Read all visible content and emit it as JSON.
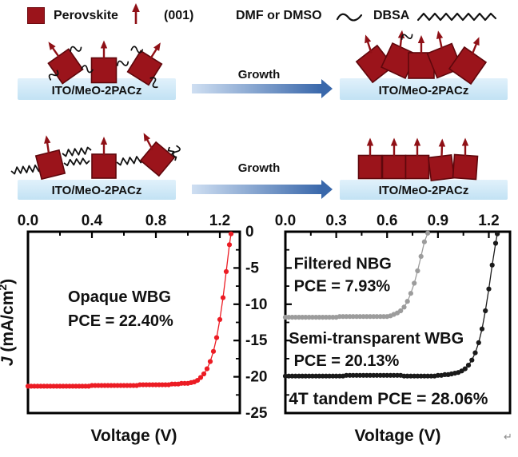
{
  "legend": {
    "perovskite_label": "Perovskite",
    "orientation_label": "(001)",
    "solvent_label": "DMF or DMSO",
    "surfactant_label": "DBSA"
  },
  "schematic": {
    "substrate_label": "ITO/MeO-2PACz",
    "growth_label": "Growth"
  },
  "footer": {
    "return_mark": "↵"
  },
  "colors": {
    "perovskite": "#9b141b",
    "orientation_arrow": "#8f1016",
    "substrate_blue": "#cde7f7",
    "growth_gradient_start": "#cfdff2",
    "growth_gradient_end": "#3a68ab",
    "red_series": "#ec1c24",
    "gray_series": "#9c9c9c",
    "black_series": "#1a1a1a"
  },
  "chart_data": [
    {
      "type": "line",
      "title": "",
      "xlabel": "Voltage (V)",
      "ylabel": "J (mA/cm2)",
      "ylabel_rich": [
        {
          "t": "J",
          "italic": true
        },
        {
          "t": " (mA/cm"
        },
        {
          "t": "2",
          "sup": true
        },
        {
          "t": ")",
          "unsup": true
        }
      ],
      "xlim": [
        0,
        1.325
      ],
      "ylim": [
        -25,
        0
      ],
      "x_ticks": [
        0,
        0.4,
        0.8,
        1.2
      ],
      "x_tick_labels": [
        "0.0",
        "0.4",
        "0.8",
        "1.2"
      ],
      "x_minor_step": 0.2,
      "y_ticks": [
        0,
        -5,
        -10,
        -15,
        -20,
        -25
      ],
      "y_tick_labels": [
        "0",
        "-5",
        "-10",
        "-15",
        "-20",
        "-25"
      ],
      "y_tick_side": "right",
      "y_minor_step": 2.5,
      "grid": false,
      "annotations": [
        {
          "text": "Opaque WBG",
          "x": 0.25,
          "y": -9.7,
          "color": "#ec1c24",
          "size": 20
        },
        {
          "text": "PCE = 22.40%",
          "x": 0.25,
          "y": -13.0,
          "color": "#ec1c24",
          "size": 20
        }
      ],
      "series": [
        {
          "name": "Opaque WBG",
          "color": "#ec1c24",
          "x": [
            0,
            0.02,
            0.04,
            0.06,
            0.08,
            0.1,
            0.12,
            0.14,
            0.16,
            0.18,
            0.2,
            0.22,
            0.24,
            0.26,
            0.28,
            0.3,
            0.32,
            0.34,
            0.36,
            0.38,
            0.4,
            0.42,
            0.44,
            0.46,
            0.48,
            0.5,
            0.52,
            0.54,
            0.56,
            0.58,
            0.6,
            0.62,
            0.64,
            0.66,
            0.68,
            0.7,
            0.72,
            0.74,
            0.76,
            0.78,
            0.8,
            0.82,
            0.84,
            0.86,
            0.88,
            0.9,
            0.92,
            0.94,
            0.96,
            0.98,
            1,
            1.02,
            1.04,
            1.06,
            1.08,
            1.1,
            1.12,
            1.14,
            1.16,
            1.18,
            1.2,
            1.22,
            1.24,
            1.26,
            1.27
          ],
          "y": [
            -21.3,
            -21.3,
            -21.3,
            -21.3,
            -21.3,
            -21.3,
            -21.3,
            -21.3,
            -21.3,
            -21.3,
            -21.3,
            -21.3,
            -21.3,
            -21.3,
            -21.3,
            -21.3,
            -21.3,
            -21.3,
            -21.3,
            -21.3,
            -21.2,
            -21.2,
            -21.2,
            -21.2,
            -21.2,
            -21.2,
            -21.2,
            -21.2,
            -21.2,
            -21.2,
            -21.2,
            -21.2,
            -21.2,
            -21.2,
            -21.2,
            -21.1,
            -21.1,
            -21.1,
            -21.1,
            -21.1,
            -21.1,
            -21.1,
            -21.1,
            -21.1,
            -21.1,
            -21,
            -21,
            -21,
            -20.9,
            -20.9,
            -20.9,
            -20.8,
            -20.7,
            -20.5,
            -20.1,
            -19.6,
            -18.9,
            -17.9,
            -16.5,
            -14.6,
            -12.1,
            -9.1,
            -5.5,
            -1.8,
            -0.3
          ]
        }
      ]
    },
    {
      "type": "line",
      "title": "",
      "xlabel": "Voltage (V)",
      "ylabel": "",
      "xlim": [
        0,
        1.325
      ],
      "ylim": [
        -25,
        0
      ],
      "x_ticks": [
        0,
        0.3,
        0.6,
        0.9,
        1.2
      ],
      "x_tick_labels": [
        "0.0",
        "0.3",
        "0.6",
        "0.9",
        "1.2"
      ],
      "x_minor_step": 0.15,
      "y_ticks": [
        0,
        -5,
        -10,
        -15,
        -20,
        -25
      ],
      "y_tick_labels": null,
      "y_tick_side": "left",
      "y_minor_step": 2.5,
      "grid": false,
      "annotations": [
        {
          "text": "Filtered NBG",
          "x": 0.05,
          "y": -5.1,
          "color": "#9c9c9c",
          "size": 20
        },
        {
          "text": "PCE = 7.93%",
          "x": 0.05,
          "y": -8.2,
          "color": "#9c9c9c",
          "size": 20
        },
        {
          "text": "Semi-transparent WBG",
          "x": 0.02,
          "y": -15.4,
          "color": "#151515",
          "size": 20
        },
        {
          "text": "PCE = 20.13%",
          "x": 0.05,
          "y": -18.5,
          "color": "#151515",
          "size": 20
        },
        {
          "text": "4T tandem PCE = 28.06%",
          "x": 0.02,
          "y": -23.8,
          "color": "#e8101a",
          "size": 21
        }
      ],
      "series": [
        {
          "name": "Filtered NBG",
          "color": "#9c9c9c",
          "x": [
            0,
            0.02,
            0.04,
            0.06,
            0.08,
            0.1,
            0.12,
            0.14,
            0.16,
            0.18,
            0.2,
            0.22,
            0.24,
            0.26,
            0.28,
            0.3,
            0.32,
            0.34,
            0.36,
            0.38,
            0.4,
            0.42,
            0.44,
            0.46,
            0.48,
            0.5,
            0.52,
            0.54,
            0.56,
            0.58,
            0.6,
            0.62,
            0.64,
            0.66,
            0.68,
            0.7,
            0.72,
            0.74,
            0.76,
            0.78,
            0.8,
            0.82,
            0.84
          ],
          "y": [
            -11.8,
            -11.8,
            -11.8,
            -11.8,
            -11.8,
            -11.8,
            -11.8,
            -11.8,
            -11.8,
            -11.8,
            -11.8,
            -11.8,
            -11.8,
            -11.8,
            -11.8,
            -11.8,
            -11.7,
            -11.7,
            -11.7,
            -11.7,
            -11.7,
            -11.7,
            -11.7,
            -11.7,
            -11.7,
            -11.7,
            -11.7,
            -11.7,
            -11.7,
            -11.7,
            -11.7,
            -11.6,
            -11.4,
            -11.2,
            -10.9,
            -10.4,
            -9.6,
            -8.5,
            -7.1,
            -5.4,
            -3.4,
            -1.4,
            -0.2
          ]
        },
        {
          "name": "Semi-transparent WBG",
          "color": "#1a1a1a",
          "x": [
            0,
            0.02,
            0.04,
            0.06,
            0.08,
            0.1,
            0.12,
            0.14,
            0.16,
            0.18,
            0.2,
            0.22,
            0.24,
            0.26,
            0.28,
            0.3,
            0.32,
            0.34,
            0.36,
            0.38,
            0.4,
            0.42,
            0.44,
            0.46,
            0.48,
            0.5,
            0.52,
            0.54,
            0.56,
            0.58,
            0.6,
            0.62,
            0.64,
            0.66,
            0.68,
            0.7,
            0.72,
            0.74,
            0.76,
            0.78,
            0.8,
            0.82,
            0.84,
            0.86,
            0.88,
            0.9,
            0.92,
            0.94,
            0.96,
            0.98,
            1,
            1.02,
            1.04,
            1.06,
            1.08,
            1.1,
            1.12,
            1.14,
            1.16,
            1.18,
            1.2,
            1.22,
            1.24,
            1.25
          ],
          "y": [
            -19.9,
            -19.9,
            -19.9,
            -19.9,
            -19.9,
            -19.9,
            -19.9,
            -19.9,
            -19.9,
            -19.9,
            -19.9,
            -19.9,
            -19.9,
            -19.9,
            -19.9,
            -19.9,
            -19.9,
            -19.9,
            -19.8,
            -19.8,
            -19.8,
            -19.8,
            -19.8,
            -19.8,
            -19.8,
            -19.8,
            -19.8,
            -19.8,
            -19.8,
            -19.8,
            -19.8,
            -19.8,
            -19.8,
            -19.8,
            -19.8,
            -19.9,
            -19.9,
            -19.9,
            -19.9,
            -19.9,
            -19.9,
            -19.9,
            -19.9,
            -19.9,
            -19.9,
            -19.8,
            -19.8,
            -19.7,
            -19.7,
            -19.6,
            -19.5,
            -19.4,
            -19.2,
            -18.9,
            -18.4,
            -17.7,
            -16.7,
            -15.3,
            -13.4,
            -10.9,
            -7.9,
            -4.6,
            -1.6,
            -0.3
          ]
        }
      ]
    }
  ]
}
